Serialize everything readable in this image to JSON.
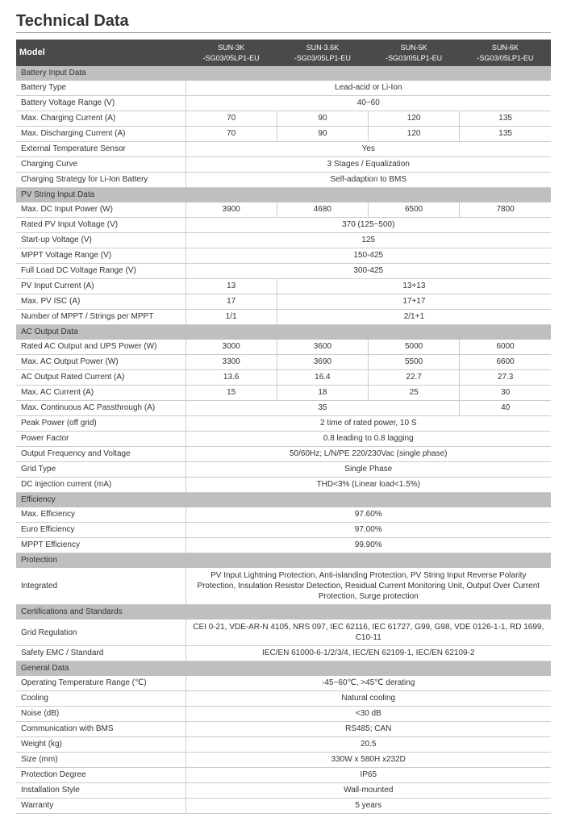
{
  "title": "Technical Data",
  "header": {
    "model_label": "Model",
    "models": [
      "SUN-3K\n-SG03/05LP1-EU",
      "SUN-3.6K\n-SG03/05LP1-EU",
      "SUN-5K\n-SG03/05LP1-EU",
      "SUN-6K\n-SG03/05LP1-EU"
    ]
  },
  "sections": [
    {
      "name": "Battery Input Data",
      "rows": [
        {
          "label": "Battery Type",
          "vals": [
            "Lead-acid or Li-Ion"
          ],
          "span": 4
        },
        {
          "label": "Battery Voltage Range (V)",
          "vals": [
            "40~60"
          ],
          "span": 4
        },
        {
          "label": "Max. Charging Current (A)",
          "vals": [
            "70",
            "90",
            "120",
            "135"
          ]
        },
        {
          "label": "Max. Discharging Current (A)",
          "vals": [
            "70",
            "90",
            "120",
            "135"
          ]
        },
        {
          "label": "External Temperature Sensor",
          "vals": [
            "Yes"
          ],
          "span": 4
        },
        {
          "label": "Charging Curve",
          "vals": [
            "3 Stages / Equalization"
          ],
          "span": 4
        },
        {
          "label": "Charging Strategy for Li-Ion Battery",
          "vals": [
            "Self-adaption to BMS"
          ],
          "span": 4
        }
      ]
    },
    {
      "name": "PV String Input Data",
      "rows": [
        {
          "label": "Max. DC Input Power (W)",
          "vals": [
            "3900",
            "4680",
            "6500",
            "7800"
          ]
        },
        {
          "label": "Rated PV Input Voltage (V)",
          "vals": [
            "370 (125~500)"
          ],
          "span": 4
        },
        {
          "label": "Start-up Voltage (V)",
          "vals": [
            "125"
          ],
          "span": 4
        },
        {
          "label": "MPPT Voltage Range (V)",
          "vals": [
            "150-425"
          ],
          "span": 4
        },
        {
          "label": "Full Load DC Voltage Range (V)",
          "vals": [
            "300-425"
          ],
          "span": 4
        },
        {
          "label": "PV Input Current (A)",
          "vals": [
            "13",
            "13+13"
          ],
          "spans": [
            1,
            3
          ]
        },
        {
          "label": "Max. PV ISC (A)",
          "vals": [
            "17",
            "17+17"
          ],
          "spans": [
            1,
            3
          ]
        },
        {
          "label": "Number of MPPT / Strings per MPPT",
          "vals": [
            "1/1",
            "2/1+1"
          ],
          "spans": [
            1,
            3
          ]
        }
      ]
    },
    {
      "name": "AC Output Data",
      "rows": [
        {
          "label": "Rated AC Output and UPS Power (W)",
          "vals": [
            "3000",
            "3600",
            "5000",
            "6000"
          ]
        },
        {
          "label": "Max. AC Output Power (W)",
          "vals": [
            "3300",
            "3690",
            "5500",
            "6600"
          ]
        },
        {
          "label": "AC Output Rated Current (A)",
          "vals": [
            "13.6",
            "16.4",
            "22.7",
            "27.3"
          ]
        },
        {
          "label": "Max. AC Current (A)",
          "vals": [
            "15",
            "18",
            "25",
            "30"
          ]
        },
        {
          "label": "Max. Continuous AC Passthrough (A)",
          "vals": [
            "35",
            "40"
          ],
          "spans": [
            3,
            1
          ]
        },
        {
          "label": "Peak Power (off grid)",
          "vals": [
            "2 time of rated power, 10 S"
          ],
          "span": 4
        },
        {
          "label": "Power Factor",
          "vals": [
            "0.8 leading to 0.8 lagging"
          ],
          "span": 4
        },
        {
          "label": "Output Frequency and Voltage",
          "vals": [
            "50/60Hz; L/N/PE  220/230Vac (single phase)"
          ],
          "span": 4
        },
        {
          "label": "Grid Type",
          "vals": [
            "Single Phase"
          ],
          "span": 4
        },
        {
          "label": "DC injection current (mA)",
          "vals": [
            "THD<3% (Linear load<1.5%)"
          ],
          "span": 4
        }
      ]
    },
    {
      "name": "Efficiency",
      "rows": [
        {
          "label": "Max. Efficiency",
          "vals": [
            "97.60%"
          ],
          "span": 4
        },
        {
          "label": "Euro Efficiency",
          "vals": [
            "97.00%"
          ],
          "span": 4
        },
        {
          "label": "MPPT Efficiency",
          "vals": [
            "99.90%"
          ],
          "span": 4
        }
      ]
    },
    {
      "name": "Protection",
      "rows": [
        {
          "label": "Integrated",
          "vals": [
            "PV Input Lightning Protection, Anti-islanding Protection, PV String Input Reverse Polarity Protection, Insulation Resistor Detection, Residual Current Monitoring Unit, Output Over Current Protection, Surge protection"
          ],
          "span": 4,
          "multiline": true
        }
      ]
    },
    {
      "name": "Certifications and Standards",
      "rows": [
        {
          "label": "Grid Regulation",
          "vals": [
            "CEI 0-21, VDE-AR-N 4105, NRS 097, IEC 62116, IEC 61727, G99, G98, VDE 0126-1-1, RD 1699, C10-11"
          ],
          "span": 4,
          "multiline": true
        },
        {
          "label": "Safety EMC / Standard",
          "vals": [
            "IEC/EN 61000-6-1/2/3/4, IEC/EN 62109-1, IEC/EN 62109-2"
          ],
          "span": 4
        }
      ]
    },
    {
      "name": "General Data",
      "rows": [
        {
          "label": "Operating Temperature Range (℃)",
          "vals": [
            "-45~60℃, >45℃ derating"
          ],
          "span": 4
        },
        {
          "label": "Cooling",
          "vals": [
            "Natural cooling"
          ],
          "span": 4
        },
        {
          "label": "Noise (dB)",
          "vals": [
            "<30 dB"
          ],
          "span": 4
        },
        {
          "label": "Communication with BMS",
          "vals": [
            "RS485; CAN"
          ],
          "span": 4
        },
        {
          "label": "Weight (kg)",
          "vals": [
            "20.5"
          ],
          "span": 4
        },
        {
          "label": "Size (mm)",
          "vals": [
            "330W x 580H x232D"
          ],
          "span": 4
        },
        {
          "label": "Protection Degree",
          "vals": [
            "IP65"
          ],
          "span": 4
        },
        {
          "label": "Installation Style",
          "vals": [
            "Wall-mounted"
          ],
          "span": 4
        },
        {
          "label": "Warranty",
          "vals": [
            "5 years"
          ],
          "span": 4
        }
      ]
    }
  ]
}
